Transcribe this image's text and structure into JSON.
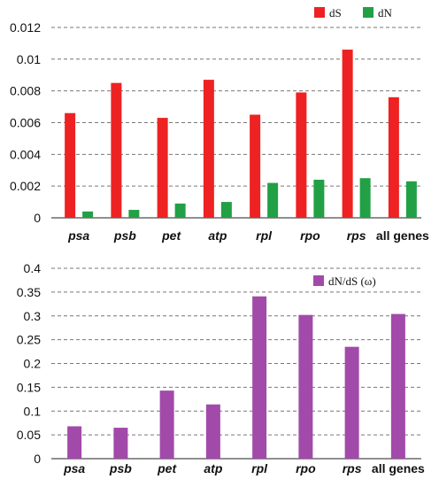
{
  "chart_data": [
    {
      "type": "bar",
      "categories": [
        "psa",
        "psb",
        "pet",
        "atp",
        "rpl",
        "rpo",
        "rps",
        "all genes"
      ],
      "italic_categories": [
        true,
        true,
        true,
        true,
        true,
        true,
        true,
        false
      ],
      "series": [
        {
          "name": "dS",
          "color": "#ee2222",
          "values": [
            0.0066,
            0.0085,
            0.0063,
            0.0087,
            0.0065,
            0.0079,
            0.0106,
            0.0076
          ]
        },
        {
          "name": "dN",
          "color": "#22a046",
          "values": [
            0.0004,
            0.0005,
            0.0009,
            0.001,
            0.0022,
            0.0024,
            0.0025,
            0.0023
          ]
        }
      ],
      "ylim": [
        0,
        0.0125
      ],
      "yticks": [
        "0",
        "0.002",
        "0.004",
        "0.006",
        "0.008",
        "0.01",
        "0.012"
      ],
      "grid": true,
      "legend_position": "top-right"
    },
    {
      "type": "bar",
      "categories": [
        "psa",
        "psb",
        "pet",
        "atp",
        "rpl",
        "rpo",
        "rps",
        "all genes"
      ],
      "italic_categories": [
        true,
        true,
        true,
        true,
        true,
        true,
        true,
        false
      ],
      "series": [
        {
          "name": "dN/dS (ω)",
          "color": "#a24aaa",
          "values": [
            0.068,
            0.065,
            0.143,
            0.114,
            0.341,
            0.302,
            0.235,
            0.304
          ]
        }
      ],
      "ylim": [
        0,
        0.4
      ],
      "yticks": [
        "0",
        "0.05",
        "0.1",
        "0.15",
        "0.2",
        "0.25",
        "0.3",
        "0.35",
        "0.4"
      ],
      "grid": true,
      "legend_position": "top-right"
    }
  ]
}
